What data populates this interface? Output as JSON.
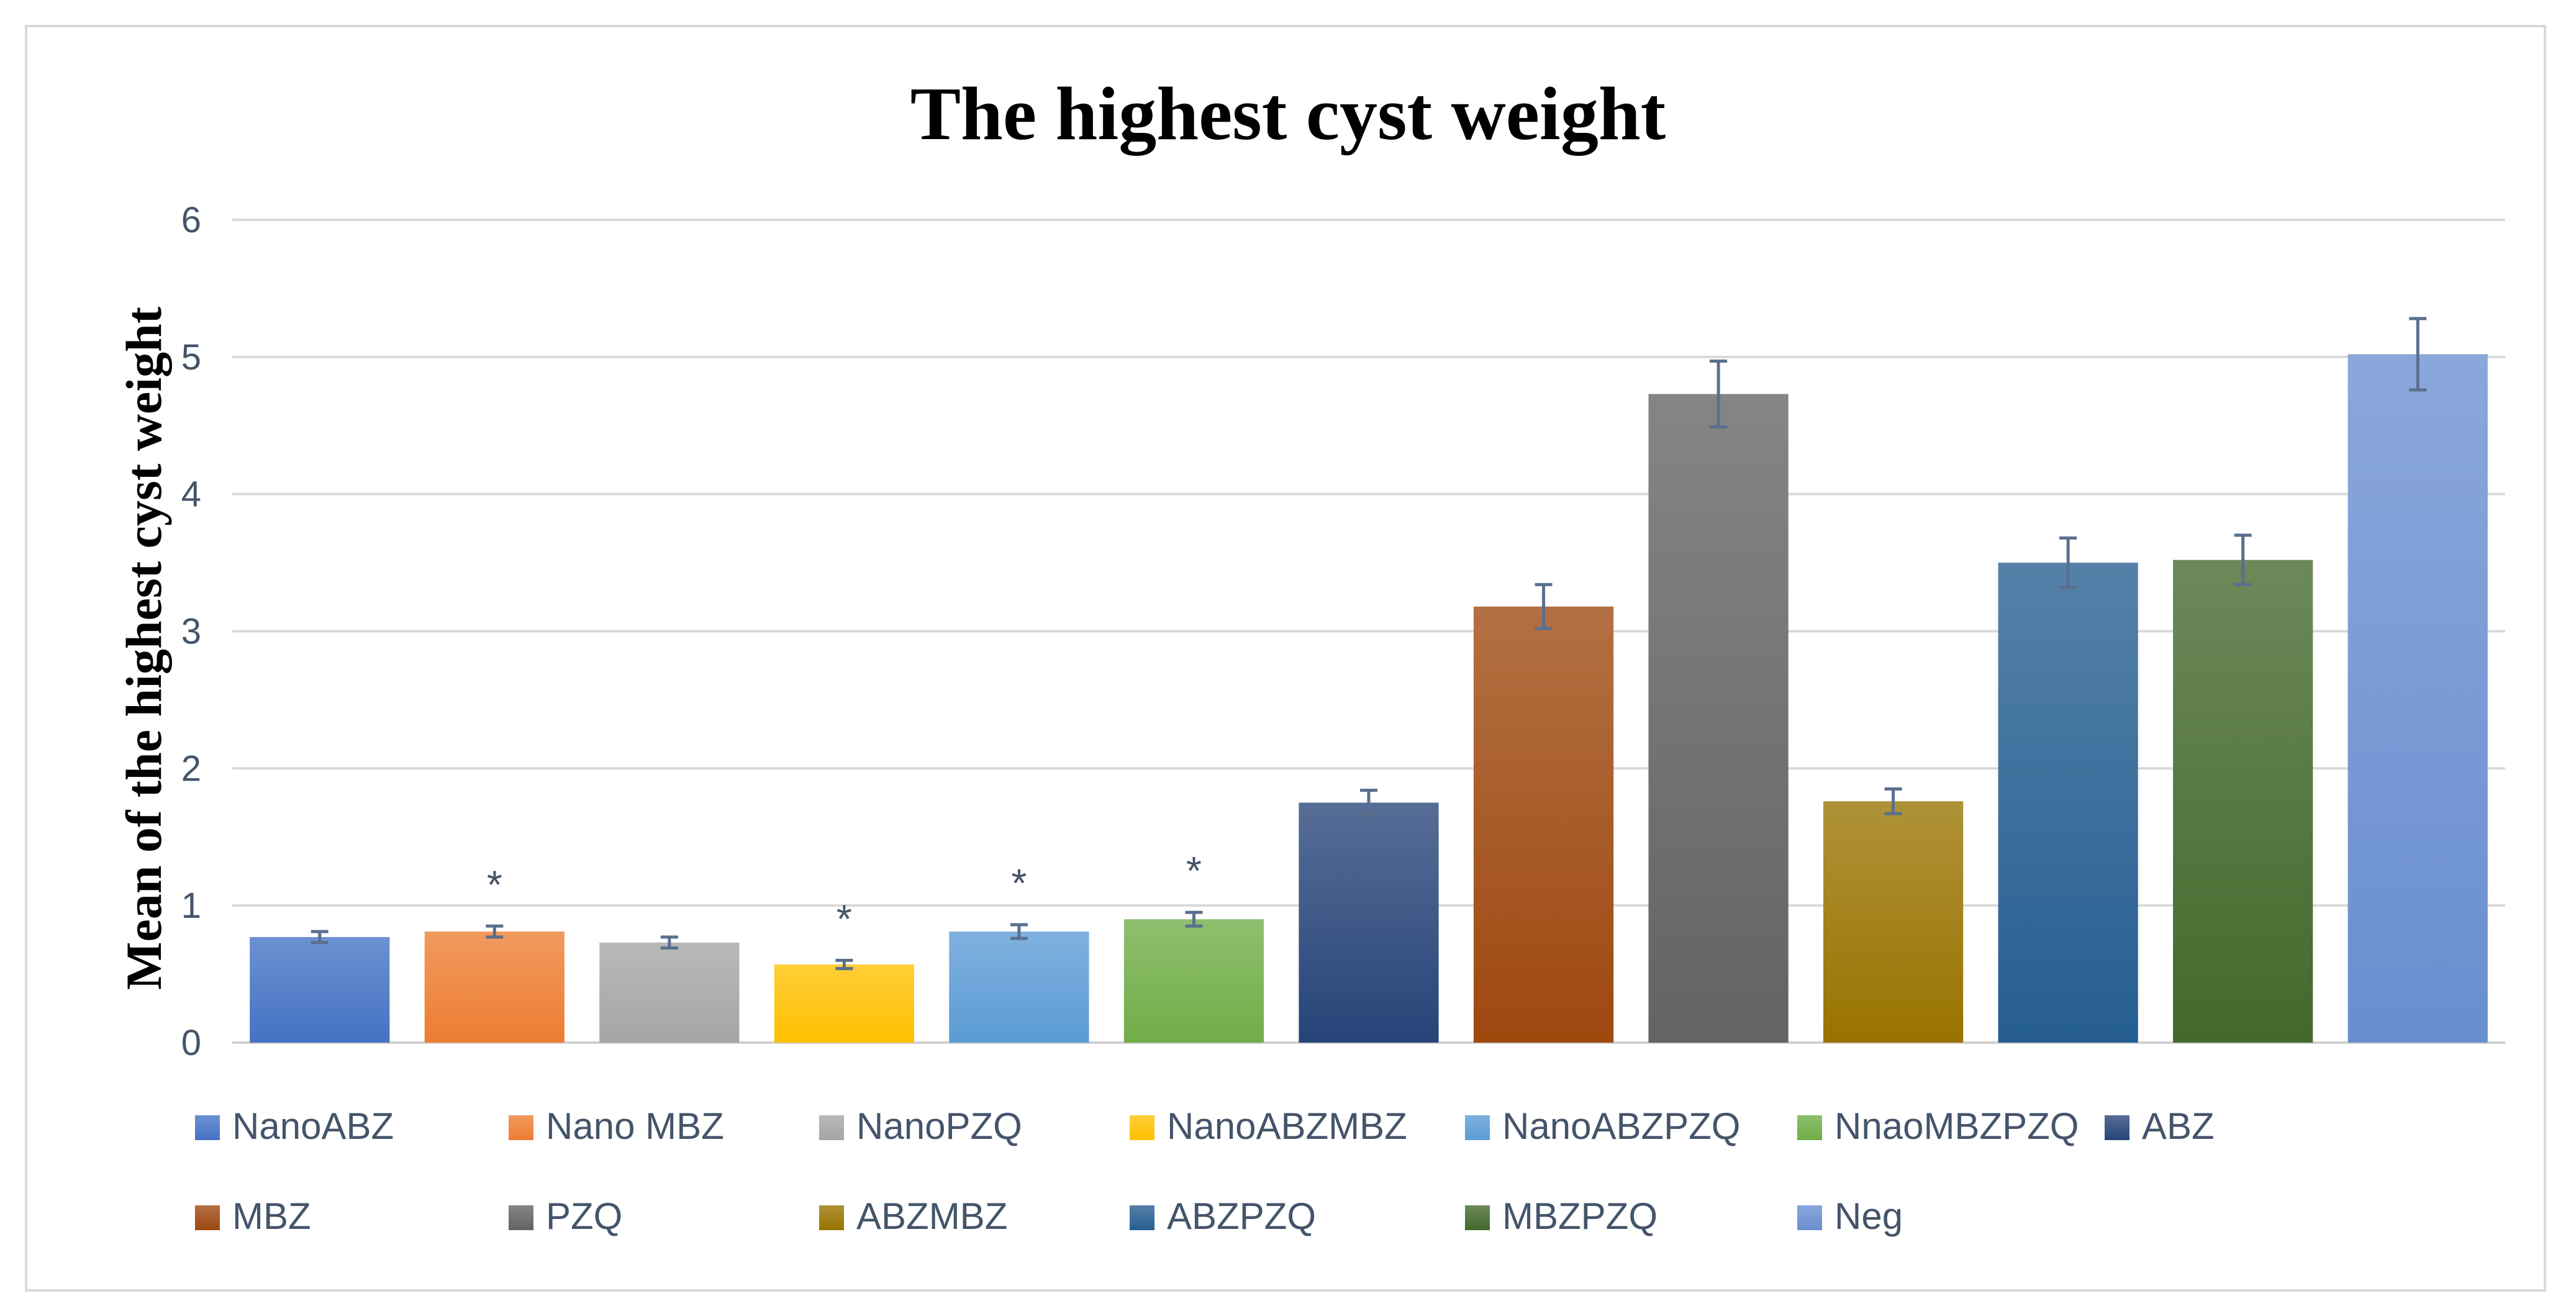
{
  "chart_data": {
    "type": "bar",
    "title": "The highest cyst weight",
    "xlabel": "",
    "ylabel": "Mean of the highest cyst weight",
    "ylim": [
      0,
      6
    ],
    "yticks": [
      "0",
      "1",
      "2",
      "3",
      "4",
      "5",
      "6"
    ],
    "grid": true,
    "legend_position": "bottom",
    "categories": [
      "NanoABZ",
      "Nano MBZ",
      "NanoPZQ",
      "NanoABZMBZ",
      "NanoABZPZQ",
      "NnaoMBZPZQ",
      "ABZ",
      "MBZ",
      "PZQ",
      "ABZMBZ",
      "ABZPZQ",
      "MBZPZQ",
      "Neg"
    ],
    "values": [
      0.77,
      0.81,
      0.73,
      0.57,
      0.81,
      0.9,
      1.75,
      3.18,
      4.73,
      1.76,
      3.5,
      3.52,
      5.02
    ],
    "errors": [
      0.04,
      0.04,
      0.04,
      0.03,
      0.05,
      0.05,
      0.09,
      0.16,
      0.24,
      0.09,
      0.18,
      0.18,
      0.26
    ],
    "significance": [
      "",
      "*",
      "",
      "*",
      "*",
      "*",
      "",
      "",
      "",
      "",
      "",
      "",
      ""
    ],
    "colors": [
      "#4472c4",
      "#ed7d31",
      "#a5a5a5",
      "#ffc000",
      "#5b9bd5",
      "#70ad47",
      "#264478",
      "#9e480e",
      "#636363",
      "#997300",
      "#255e91",
      "#43682b",
      "#698ed0"
    ]
  }
}
